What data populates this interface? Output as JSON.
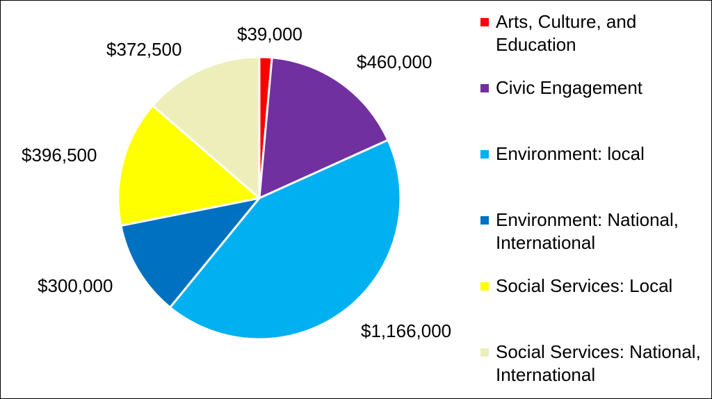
{
  "chart_data": {
    "type": "pie",
    "title": "",
    "categories": [
      "Arts, Culture, and Education",
      "Civic Engagement",
      "Environment: local",
      "Environment: National, International",
      "Social Services: Local",
      "Social Services: National, International"
    ],
    "values": [
      39000,
      460000,
      1166000,
      300000,
      396500,
      372500
    ],
    "data_labels": [
      "$39,000",
      "$460,000",
      "$1,166,000",
      "$300,000",
      "$396,500",
      "$372,500"
    ],
    "colors": [
      "#ff0000",
      "#7030a0",
      "#00b0f0",
      "#0070c0",
      "#ffff00",
      "#eeeebb"
    ],
    "start_angle": "12 o'clock",
    "direction": "clockwise",
    "legend_position": "right"
  }
}
